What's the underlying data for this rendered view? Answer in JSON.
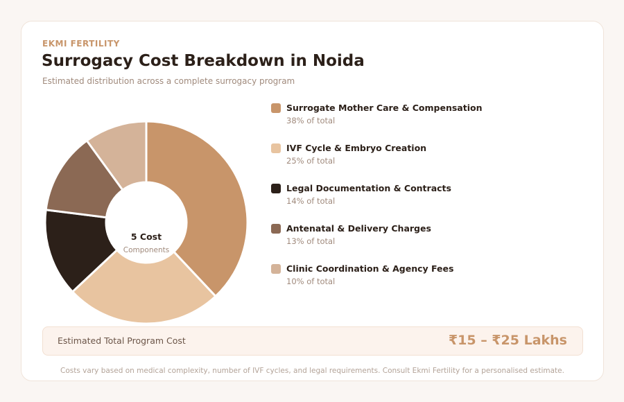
{
  "header": {
    "brand": "EKMI FERTILITY",
    "title": "Surrogacy Cost Breakdown in Noida",
    "subtitle": "Estimated distribution across a complete surrogacy program"
  },
  "chart_data": {
    "type": "pie",
    "donut": true,
    "center_label": {
      "value": "5 Cost",
      "caption": "Components"
    },
    "categories": [
      "Surrogate Mother Care & Compensation",
      "IVF Cycle & Embryo Creation",
      "Legal Documentation & Contracts",
      "Antenatal & Delivery Charges",
      "Clinic Coordination & Agency Fees"
    ],
    "values": [
      38,
      25,
      14,
      13,
      10
    ],
    "percent_labels": [
      "38% of total",
      "25% of total",
      "14% of total",
      "13% of total",
      "10% of total"
    ],
    "colors": [
      "#c8956a",
      "#e8c4a0",
      "#2c2019",
      "#8b6954",
      "#d4b399"
    ],
    "legend_position": "right"
  },
  "total": {
    "label": "Estimated Total Program Cost",
    "value": "₹15 – ₹25 Lakhs"
  },
  "footer": "Costs vary based on medical complexity, number of IVF cycles, and legal requirements. Consult Ekmi Fertility for a personalised estimate."
}
